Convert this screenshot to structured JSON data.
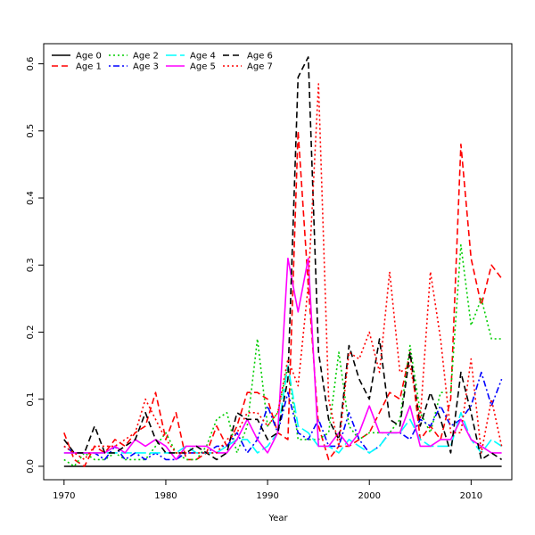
{
  "chart_data": {
    "type": "line",
    "title": "",
    "xlabel": "Year",
    "ylabel": "",
    "xlim": [
      1968,
      2014
    ],
    "ylim": [
      -0.02,
      0.63
    ],
    "xticks": [
      1970,
      1980,
      1990,
      2000,
      2010
    ],
    "yticks": [
      0.0,
      0.1,
      0.2,
      0.3,
      0.4,
      0.5,
      0.6
    ],
    "ytick_labels": [
      "0.0",
      "0.1",
      "0.2",
      "0.3",
      "0.4",
      "0.5",
      "0.6"
    ],
    "grid": false,
    "legend_position": "top-left",
    "x": [
      1970,
      1971,
      1972,
      1973,
      1974,
      1975,
      1976,
      1977,
      1978,
      1979,
      1980,
      1981,
      1982,
      1983,
      1984,
      1985,
      1986,
      1987,
      1988,
      1989,
      1990,
      1991,
      1992,
      1993,
      1994,
      1995,
      1996,
      1997,
      1998,
      1999,
      2000,
      2001,
      2002,
      2003,
      2004,
      2005,
      2006,
      2007,
      2008,
      2009,
      2010,
      2011,
      2012,
      2013
    ],
    "series": [
      {
        "name": "Age 0",
        "color": "#000000",
        "dash": "solid",
        "values": [
          0,
          0,
          0,
          0,
          0,
          0,
          0,
          0,
          0,
          0,
          0,
          0,
          0,
          0,
          0,
          0,
          0,
          0,
          0,
          0,
          0,
          0,
          0,
          0,
          0,
          0,
          0,
          0,
          0,
          0,
          0,
          0,
          0,
          0,
          0,
          0,
          0,
          0,
          0,
          0,
          0,
          0,
          0,
          0
        ]
      },
      {
        "name": "Age 1",
        "color": "#ff0000",
        "dash": "dashed",
        "values": [
          0.05,
          0.01,
          0.0,
          0.03,
          0.02,
          0.04,
          0.03,
          0.05,
          0.06,
          0.11,
          0.04,
          0.08,
          0.01,
          0.01,
          0.02,
          0.06,
          0.03,
          0.06,
          0.11,
          0.11,
          0.1,
          0.05,
          0.04,
          0.5,
          0.27,
          0.06,
          0.01,
          0.03,
          0.03,
          0.04,
          0.05,
          0.08,
          0.11,
          0.1,
          0.17,
          0.04,
          0.06,
          0.04,
          0.1,
          0.48,
          0.31,
          0.24,
          0.3,
          0.28
        ]
      },
      {
        "name": "Age 2",
        "color": "#00cd00",
        "dash": "dotted",
        "values": [
          0.01,
          0.0,
          0.02,
          0.01,
          0.01,
          0.02,
          0.01,
          0.01,
          0.01,
          0.03,
          0.05,
          0.02,
          0.01,
          0.01,
          0.03,
          0.07,
          0.08,
          0.02,
          0.06,
          0.19,
          0.06,
          0.08,
          0.15,
          0.04,
          0.04,
          0.04,
          0.05,
          0.17,
          0.06,
          0.04,
          0.05,
          0.05,
          0.05,
          0.07,
          0.18,
          0.08,
          0.05,
          0.11,
          0.11,
          0.33,
          0.21,
          0.25,
          0.19,
          0.19
        ]
      },
      {
        "name": "Age 3",
        "color": "#0000ff",
        "dash": "dotdash",
        "values": [
          0.03,
          0.02,
          0.02,
          0.02,
          0.01,
          0.03,
          0.01,
          0.02,
          0.01,
          0.02,
          0.01,
          0.01,
          0.02,
          0.02,
          0.02,
          0.03,
          0.03,
          0.05,
          0.02,
          0.04,
          0.09,
          0.05,
          0.11,
          0.05,
          0.04,
          0.07,
          0.03,
          0.03,
          0.08,
          0.04,
          0.02,
          0.03,
          0.05,
          0.05,
          0.04,
          0.07,
          0.06,
          0.09,
          0.06,
          0.07,
          0.09,
          0.14,
          0.09,
          0.13
        ]
      },
      {
        "name": "Age 4",
        "color": "#00ffff",
        "dash": "longdash",
        "values": [
          0.02,
          0.02,
          0.02,
          0.02,
          0.02,
          0.02,
          0.02,
          0.02,
          0.02,
          0.02,
          0.02,
          0.02,
          0.03,
          0.02,
          0.02,
          0.02,
          0.03,
          0.04,
          0.04,
          0.02,
          0.03,
          0.05,
          0.15,
          0.06,
          0.05,
          0.03,
          0.03,
          0.02,
          0.04,
          0.03,
          0.02,
          0.03,
          0.05,
          0.05,
          0.07,
          0.04,
          0.03,
          0.03,
          0.03,
          0.08,
          0.04,
          0.02,
          0.04,
          0.03
        ]
      },
      {
        "name": "Age 5",
        "color": "#ff00ff",
        "dash": "solid",
        "values": [
          0.02,
          0.02,
          0.02,
          0.02,
          0.02,
          0.03,
          0.02,
          0.04,
          0.03,
          0.04,
          0.03,
          0.01,
          0.03,
          0.03,
          0.03,
          0.02,
          0.02,
          0.04,
          0.07,
          0.04,
          0.02,
          0.05,
          0.31,
          0.23,
          0.31,
          0.03,
          0.03,
          0.05,
          0.03,
          0.05,
          0.09,
          0.05,
          0.05,
          0.05,
          0.09,
          0.03,
          0.03,
          0.04,
          0.04,
          0.07,
          0.04,
          0.03,
          0.02,
          0.02
        ]
      },
      {
        "name": "Age 6",
        "color": "#000000",
        "dash": "dashed",
        "values": [
          0.04,
          0.02,
          0.02,
          0.06,
          0.02,
          0.02,
          0.03,
          0.04,
          0.08,
          0.04,
          0.02,
          0.02,
          0.02,
          0.03,
          0.02,
          0.01,
          0.02,
          0.08,
          0.07,
          0.07,
          0.04,
          0.05,
          0.13,
          0.58,
          0.61,
          0.17,
          0.07,
          0.04,
          0.18,
          0.13,
          0.1,
          0.19,
          0.07,
          0.06,
          0.17,
          0.06,
          0.11,
          0.07,
          0.02,
          0.14,
          0.08,
          0.01,
          0.02,
          0.01
        ]
      },
      {
        "name": "Age 7",
        "color": "#ff0000",
        "dash": "dotted",
        "values": [
          0.03,
          0.02,
          0.01,
          0.03,
          0.03,
          0.03,
          0.04,
          0.05,
          0.1,
          0.07,
          0.04,
          0.02,
          0.02,
          0.02,
          0.02,
          0.02,
          0.04,
          0.05,
          0.08,
          0.08,
          0.06,
          0.08,
          0.16,
          0.12,
          0.27,
          0.57,
          0.1,
          0.03,
          0.17,
          0.16,
          0.2,
          0.14,
          0.29,
          0.14,
          0.15,
          0.07,
          0.29,
          0.19,
          0.05,
          0.05,
          0.16,
          0.02,
          0.1,
          0.03
        ]
      }
    ]
  }
}
